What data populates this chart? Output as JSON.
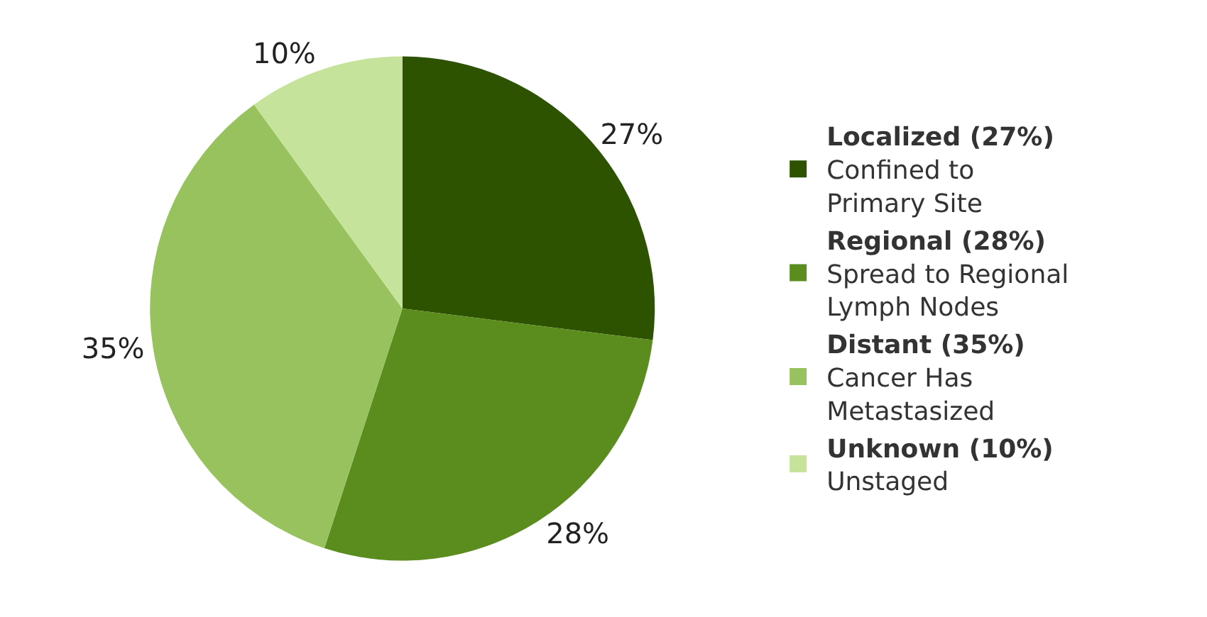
{
  "chart_data": {
    "type": "pie",
    "categories": [
      "Localized (27%)\nConfined to\nPrimary Site",
      "Regional (28%)\nSpread to Regional\nLymph Nodes",
      "Distant (35%)\nCancer Has\nMetastasized",
      "Unknown (10%)\nUnstaged"
    ],
    "values": [
      27,
      28,
      35,
      10
    ],
    "value_labels": [
      "27%",
      "28%",
      "35%",
      "10%"
    ],
    "colors": [
      "#2d5200",
      "#5a8c1e",
      "#98c25e",
      "#c6e39c"
    ],
    "legend": "right"
  }
}
